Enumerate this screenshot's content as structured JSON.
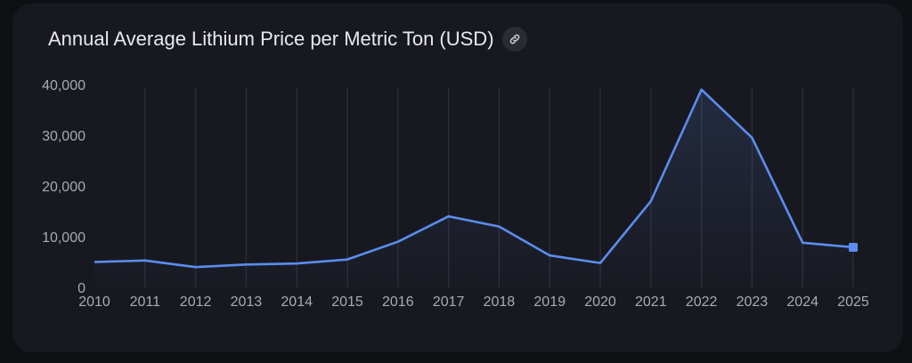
{
  "chart_data": {
    "type": "line",
    "title": "Annual Average Lithium Price per Metric Ton (USD)",
    "xlabel": "",
    "ylabel": "",
    "x": [
      "2010",
      "2011",
      "2012",
      "2013",
      "2014",
      "2015",
      "2016",
      "2017",
      "2018",
      "2019",
      "2020",
      "2021",
      "2022",
      "2023",
      "2024",
      "2025"
    ],
    "values": [
      5000,
      5300,
      4000,
      4500,
      4700,
      5500,
      9000,
      14000,
      12000,
      6300,
      4800,
      17000,
      39000,
      29500,
      8800,
      7900
    ],
    "ylim": [
      0,
      40000
    ],
    "yticks": [
      "0",
      "10,000",
      "20,000",
      "30,000",
      "40,000"
    ],
    "ytick_values": [
      0,
      10000,
      20000,
      30000,
      40000
    ],
    "grid": "vertical",
    "line_color": "#5b8def",
    "last_point_marker": "square"
  },
  "icons": {
    "title_link": "link-icon"
  }
}
